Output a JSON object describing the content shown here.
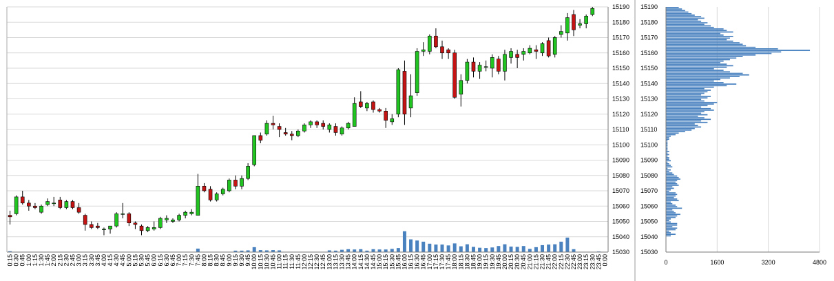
{
  "chart_data": [
    {
      "type": "candlestick",
      "title": "",
      "xlabel": "",
      "ylabel": "",
      "ylim": [
        15030,
        15190
      ],
      "grid": true,
      "y_ticks": [
        15030,
        15040,
        15050,
        15060,
        15070,
        15080,
        15090,
        15100,
        15110,
        15120,
        15130,
        15140,
        15150,
        15160,
        15170,
        15180,
        15190
      ],
      "x_ticks": [
        "0:15",
        "0:30",
        "0:45",
        "1:00",
        "1:15",
        "1:30",
        "1:45",
        "2:00",
        "2:15",
        "2:30",
        "2:45",
        "3:00",
        "3:15",
        "3:30",
        "3:45",
        "4:00",
        "4:15",
        "4:30",
        "4:45",
        "5:00",
        "5:15",
        "5:30",
        "5:45",
        "6:00",
        "6:15",
        "6:30",
        "6:45",
        "7:00",
        "7:15",
        "7:30",
        "7:45",
        "8:00",
        "8:15",
        "8:30",
        "8:45",
        "9:00",
        "9:15",
        "9:30",
        "9:45",
        "10:00",
        "10:15",
        "10:30",
        "10:45",
        "11:00",
        "11:15",
        "11:30",
        "11:45",
        "12:00",
        "12:15",
        "12:30",
        "12:45",
        "13:00",
        "13:15",
        "13:30",
        "13:45",
        "14:00",
        "14:15",
        "14:30",
        "14:45",
        "15:00",
        "15:15",
        "15:30",
        "15:45",
        "16:00",
        "16:15",
        "16:30",
        "16:45",
        "17:00",
        "17:15",
        "17:30",
        "17:45",
        "18:00",
        "18:15",
        "18:30",
        "18:45",
        "19:00",
        "19:15",
        "19:30",
        "19:45",
        "20:00",
        "20:15",
        "20:30",
        "20:45",
        "21:00",
        "21:15",
        "21:30",
        "21:45",
        "22:00",
        "22:15",
        "22:30",
        "22:45",
        "23:00",
        "23:15",
        "23:30",
        "23:45",
        "0:00"
      ],
      "candles": [
        {
          "t": "0:15",
          "o": 15054,
          "h": 15057,
          "l": 15048,
          "c": 15053
        },
        {
          "t": "0:30",
          "o": 15055,
          "h": 15067,
          "l": 15054,
          "c": 15066
        },
        {
          "t": "0:45",
          "o": 15066,
          "h": 15070,
          "l": 15061,
          "c": 15062
        },
        {
          "t": "1:00",
          "o": 15062,
          "h": 15064,
          "l": 15057,
          "c": 15060
        },
        {
          "t": "1:15",
          "o": 15060,
          "h": 15062,
          "l": 15058,
          "c": 15059
        },
        {
          "t": "1:30",
          "o": 15056,
          "h": 15061,
          "l": 15055,
          "c": 15060
        },
        {
          "t": "1:45",
          "o": 15061,
          "h": 15065,
          "l": 15060,
          "c": 15063
        },
        {
          "t": "2:00",
          "o": 15062,
          "h": 15066,
          "l": 15060,
          "c": 15062
        },
        {
          "t": "2:15",
          "o": 15064,
          "h": 15066,
          "l": 15058,
          "c": 15059
        },
        {
          "t": "2:30",
          "o": 15059,
          "h": 15064,
          "l": 15058,
          "c": 15063
        },
        {
          "t": "2:45",
          "o": 15063,
          "h": 15064,
          "l": 15058,
          "c": 15059
        },
        {
          "t": "3:00",
          "o": 15059,
          "h": 15062,
          "l": 15055,
          "c": 15056
        },
        {
          "t": "3:15",
          "o": 15054,
          "h": 15055,
          "l": 15044,
          "c": 15048
        },
        {
          "t": "3:30",
          "o": 15048,
          "h": 15050,
          "l": 15045,
          "c": 15046
        },
        {
          "t": "3:45",
          "o": 15047,
          "h": 15049,
          "l": 15045,
          "c": 15046
        },
        {
          "t": "4:00",
          "o": 15045,
          "h": 15046,
          "l": 15041,
          "c": 15045
        },
        {
          "t": "4:15",
          "o": 15045,
          "h": 15047,
          "l": 15042,
          "c": 15047
        },
        {
          "t": "4:30",
          "o": 15047,
          "h": 15056,
          "l": 15046,
          "c": 15055
        },
        {
          "t": "4:45",
          "o": 15055,
          "h": 15062,
          "l": 15052,
          "c": 15055
        },
        {
          "t": "5:00",
          "o": 15055,
          "h": 15056,
          "l": 15047,
          "c": 15049
        },
        {
          "t": "5:15",
          "o": 15049,
          "h": 15050,
          "l": 15045,
          "c": 15048
        },
        {
          "t": "5:30",
          "o": 15047,
          "h": 15048,
          "l": 15041,
          "c": 15044
        },
        {
          "t": "5:45",
          "o": 15044,
          "h": 15047,
          "l": 15043,
          "c": 15046
        },
        {
          "t": "6:00",
          "o": 15045,
          "h": 15050,
          "l": 15044,
          "c": 15046
        },
        {
          "t": "6:15",
          "o": 15046,
          "h": 15053,
          "l": 15045,
          "c": 15052
        },
        {
          "t": "6:30",
          "o": 15051,
          "h": 15054,
          "l": 15049,
          "c": 15052
        },
        {
          "t": "6:45",
          "o": 15050,
          "h": 15052,
          "l": 15049,
          "c": 15051
        },
        {
          "t": "7:00",
          "o": 15051,
          "h": 15055,
          "l": 15050,
          "c": 15054
        },
        {
          "t": "7:15",
          "o": 15054,
          "h": 15057,
          "l": 15052,
          "c": 15056
        },
        {
          "t": "7:30",
          "o": 15055,
          "h": 15058,
          "l": 15054,
          "c": 15056
        },
        {
          "t": "7:45",
          "o": 15054,
          "h": 15081,
          "l": 15054,
          "c": 15073
        },
        {
          "t": "8:00",
          "o": 15073,
          "h": 15075,
          "l": 15069,
          "c": 15070
        },
        {
          "t": "8:15",
          "o": 15071,
          "h": 15073,
          "l": 15063,
          "c": 15064
        },
        {
          "t": "8:30",
          "o": 15064,
          "h": 15069,
          "l": 15063,
          "c": 15068
        },
        {
          "t": "8:45",
          "o": 15068,
          "h": 15072,
          "l": 15067,
          "c": 15071
        },
        {
          "t": "9:00",
          "o": 15070,
          "h": 15078,
          "l": 15069,
          "c": 15077
        },
        {
          "t": "9:15",
          "o": 15077,
          "h": 15080,
          "l": 15071,
          "c": 15073
        },
        {
          "t": "9:30",
          "o": 15073,
          "h": 15080,
          "l": 15071,
          "c": 15078
        },
        {
          "t": "9:45",
          "o": 15078,
          "h": 15088,
          "l": 15077,
          "c": 15086
        },
        {
          "t": "10:00",
          "o": 15087,
          "h": 15106,
          "l": 15086,
          "c": 15106
        },
        {
          "t": "10:15",
          "o": 15106,
          "h": 15108,
          "l": 15101,
          "c": 15103
        },
        {
          "t": "10:30",
          "o": 15107,
          "h": 15116,
          "l": 15106,
          "c": 15114
        },
        {
          "t": "10:45",
          "o": 15114,
          "h": 15119,
          "l": 15110,
          "c": 15113
        },
        {
          "t": "11:00",
          "o": 15112,
          "h": 15114,
          "l": 15105,
          "c": 15110
        },
        {
          "t": "11:15",
          "o": 15108,
          "h": 15111,
          "l": 15106,
          "c": 15107
        },
        {
          "t": "11:30",
          "o": 15107,
          "h": 15109,
          "l": 15103,
          "c": 15106
        },
        {
          "t": "11:45",
          "o": 15106,
          "h": 15110,
          "l": 15105,
          "c": 15109
        },
        {
          "t": "12:00",
          "o": 15109,
          "h": 15114,
          "l": 15108,
          "c": 15113
        },
        {
          "t": "12:15",
          "o": 15113,
          "h": 15116,
          "l": 15111,
          "c": 15115
        },
        {
          "t": "12:30",
          "o": 15115,
          "h": 15116,
          "l": 15111,
          "c": 15113
        },
        {
          "t": "12:45",
          "o": 15114,
          "h": 15116,
          "l": 15110,
          "c": 15112
        },
        {
          "t": "13:00",
          "o": 15110,
          "h": 15114,
          "l": 15108,
          "c": 15113
        },
        {
          "t": "13:15",
          "o": 15112,
          "h": 15114,
          "l": 15106,
          "c": 15108
        },
        {
          "t": "13:30",
          "o": 15107,
          "h": 15112,
          "l": 15106,
          "c": 15111
        },
        {
          "t": "13:45",
          "o": 15111,
          "h": 15115,
          "l": 15110,
          "c": 15114
        },
        {
          "t": "14:00",
          "o": 15112,
          "h": 15131,
          "l": 15112,
          "c": 15127
        },
        {
          "t": "14:15",
          "o": 15128,
          "h": 15135,
          "l": 15124,
          "c": 15125
        },
        {
          "t": "14:30",
          "o": 15124,
          "h": 15128,
          "l": 15122,
          "c": 15127
        },
        {
          "t": "14:45",
          "o": 15128,
          "h": 15129,
          "l": 15121,
          "c": 15123
        },
        {
          "t": "15:00",
          "o": 15123,
          "h": 15124,
          "l": 15121,
          "c": 15122
        },
        {
          "t": "15:15",
          "o": 15122,
          "h": 15124,
          "l": 15111,
          "c": 15116
        },
        {
          "t": "15:30",
          "o": 15115,
          "h": 15120,
          "l": 15113,
          "c": 15117
        },
        {
          "t": "15:45",
          "o": 15120,
          "h": 15150,
          "l": 15118,
          "c": 15149
        },
        {
          "t": "16:00",
          "o": 15148,
          "h": 15155,
          "l": 15113,
          "c": 15120
        },
        {
          "t": "16:15",
          "o": 15124,
          "h": 15146,
          "l": 15118,
          "c": 15132
        },
        {
          "t": "16:30",
          "o": 15134,
          "h": 15163,
          "l": 15132,
          "c": 15161
        },
        {
          "t": "16:45",
          "o": 15161,
          "h": 15167,
          "l": 15158,
          "c": 15162
        },
        {
          "t": "17:00",
          "o": 15161,
          "h": 15172,
          "l": 15159,
          "c": 15171
        },
        {
          "t": "17:15",
          "o": 15171,
          "h": 15176,
          "l": 15163,
          "c": 15164
        },
        {
          "t": "17:30",
          "o": 15164,
          "h": 15168,
          "l": 15156,
          "c": 15160
        },
        {
          "t": "17:45",
          "o": 15162,
          "h": 15163,
          "l": 15156,
          "c": 15160
        },
        {
          "t": "18:00",
          "o": 15160,
          "h": 15162,
          "l": 15130,
          "c": 15131
        },
        {
          "t": "18:15",
          "o": 15133,
          "h": 15146,
          "l": 15125,
          "c": 15142
        },
        {
          "t": "18:30",
          "o": 15142,
          "h": 15156,
          "l": 15140,
          "c": 15154
        },
        {
          "t": "18:45",
          "o": 15154,
          "h": 15157,
          "l": 15144,
          "c": 15148
        },
        {
          "t": "19:00",
          "o": 15148,
          "h": 15154,
          "l": 15143,
          "c": 15152
        },
        {
          "t": "19:15",
          "o": 15151,
          "h": 15155,
          "l": 15148,
          "c": 15151
        },
        {
          "t": "19:30",
          "o": 15150,
          "h": 15159,
          "l": 15144,
          "c": 15157
        },
        {
          "t": "19:45",
          "o": 15156,
          "h": 15158,
          "l": 15146,
          "c": 15148
        },
        {
          "t": "20:00",
          "o": 15148,
          "h": 15162,
          "l": 15142,
          "c": 15159
        },
        {
          "t": "20:15",
          "o": 15157,
          "h": 15163,
          "l": 15153,
          "c": 15161
        },
        {
          "t": "20:30",
          "o": 15159,
          "h": 15162,
          "l": 15150,
          "c": 15157
        },
        {
          "t": "20:45",
          "o": 15159,
          "h": 15163,
          "l": 15155,
          "c": 15161
        },
        {
          "t": "21:00",
          "o": 15160,
          "h": 15165,
          "l": 15159,
          "c": 15163
        },
        {
          "t": "21:15",
          "o": 15162,
          "h": 15165,
          "l": 15156,
          "c": 15161
        },
        {
          "t": "21:30",
          "o": 15160,
          "h": 15167,
          "l": 15158,
          "c": 15166
        },
        {
          "t": "21:45",
          "o": 15168,
          "h": 15170,
          "l": 15157,
          "c": 15158
        },
        {
          "t": "22:00",
          "o": 15159,
          "h": 15171,
          "l": 15157,
          "c": 15170
        },
        {
          "t": "22:15",
          "o": 15172,
          "h": 15178,
          "l": 15170,
          "c": 15174
        },
        {
          "t": "22:30",
          "o": 15173,
          "h": 15186,
          "l": 15168,
          "c": 15183
        },
        {
          "t": "22:45",
          "o": 15185,
          "h": 15188,
          "l": 15171,
          "c": 15175
        },
        {
          "t": "23:00",
          "o": 15178,
          "h": 15182,
          "l": 15176,
          "c": 15179
        },
        {
          "t": "23:15",
          "o": 15179,
          "h": 15185,
          "l": 15176,
          "c": 15184
        },
        {
          "t": "23:30",
          "o": 15185,
          "h": 15190,
          "l": 15184,
          "c": 15189
        }
      ],
      "volume_relative": [
        0.03,
        0,
        0,
        0,
        0,
        0,
        0,
        0,
        0,
        0,
        0,
        0,
        0,
        0,
        0,
        0,
        0,
        0,
        0,
        0,
        0,
        0,
        0,
        0,
        0,
        0,
        0,
        0,
        0,
        0,
        0.12,
        0,
        0,
        0,
        0,
        0,
        0.05,
        0.05,
        0.06,
        0.17,
        0.07,
        0.06,
        0.07,
        0.06,
        0,
        0,
        0,
        0,
        0,
        0,
        0,
        0.06,
        0.05,
        0.08,
        0.1,
        0.09,
        0.1,
        0.05,
        0.1,
        0.09,
        0.09,
        0.11,
        0.14,
        0.72,
        0.44,
        0.4,
        0.36,
        0.29,
        0.26,
        0.26,
        0.23,
        0.3,
        0.2,
        0.27,
        0.18,
        0.15,
        0.14,
        0.16,
        0.21,
        0.27,
        0.19,
        0.18,
        0.21,
        0.11,
        0.17,
        0.24,
        0.26,
        0.27,
        0.36,
        0.5,
        0.1,
        0,
        0,
        0,
        0.02,
        0
      ],
      "up_color": "#22c422",
      "down_color": "#c41414",
      "volume_color": "#4a82c0"
    },
    {
      "type": "bar",
      "orientation": "horizontal",
      "title": "",
      "xlabel": "",
      "ylabel": "",
      "xlim": [
        0,
        4800
      ],
      "ylim": [
        15030,
        15190
      ],
      "x_ticks": [
        "0",
        "1600",
        "3200",
        "4800"
      ],
      "y_ticks": [
        15030,
        15040,
        15050,
        15060,
        15070,
        15080,
        15090,
        15100,
        15110,
        15120,
        15130,
        15140,
        15150,
        15160,
        15170,
        15180,
        15190
      ],
      "bar_color": "#4a82c0",
      "price_levels_start": 15040,
      "price_levels_end": 15190,
      "values": [
        150,
        300,
        150,
        100,
        300,
        350,
        200,
        350,
        350,
        150,
        100,
        150,
        300,
        350,
        450,
        300,
        250,
        200,
        500,
        350,
        300,
        200,
        150,
        400,
        350,
        250,
        300,
        350,
        300,
        100,
        150,
        250,
        200,
        400,
        350,
        300,
        350,
        450,
        400,
        350,
        250,
        200,
        100,
        150,
        50,
        200,
        150,
        100,
        50,
        150,
        100,
        100,
        50,
        100,
        50,
        100,
        50,
        50,
        50,
        50,
        50,
        50,
        50,
        100,
        100,
        150,
        300,
        400,
        600,
        800,
        900,
        1100,
        1000,
        900,
        1300,
        1100,
        1400,
        1200,
        1000,
        1300,
        1100,
        1200,
        1500,
        1400,
        1100,
        1300,
        1500,
        1600,
        1200,
        1100,
        1300,
        1400,
        1100,
        1200,
        1300,
        1400,
        1200,
        1500,
        1900,
        2200,
        1800,
        1500,
        1700,
        2000,
        2300,
        2600,
        2400,
        2000,
        1800,
        1500,
        1900,
        2100,
        1900,
        1700,
        1800,
        2000,
        2200,
        2400,
        2800,
        3300,
        3600,
        4500,
        3500,
        2800,
        2500,
        2400,
        2300,
        2100,
        1900,
        2000,
        2100,
        1800,
        1700,
        2100,
        1900,
        1800,
        1500,
        1400,
        1200,
        1300,
        1100,
        1000,
        1200,
        1100,
        900,
        800,
        700,
        600,
        500,
        400
      ],
      "notes": ""
    }
  ]
}
